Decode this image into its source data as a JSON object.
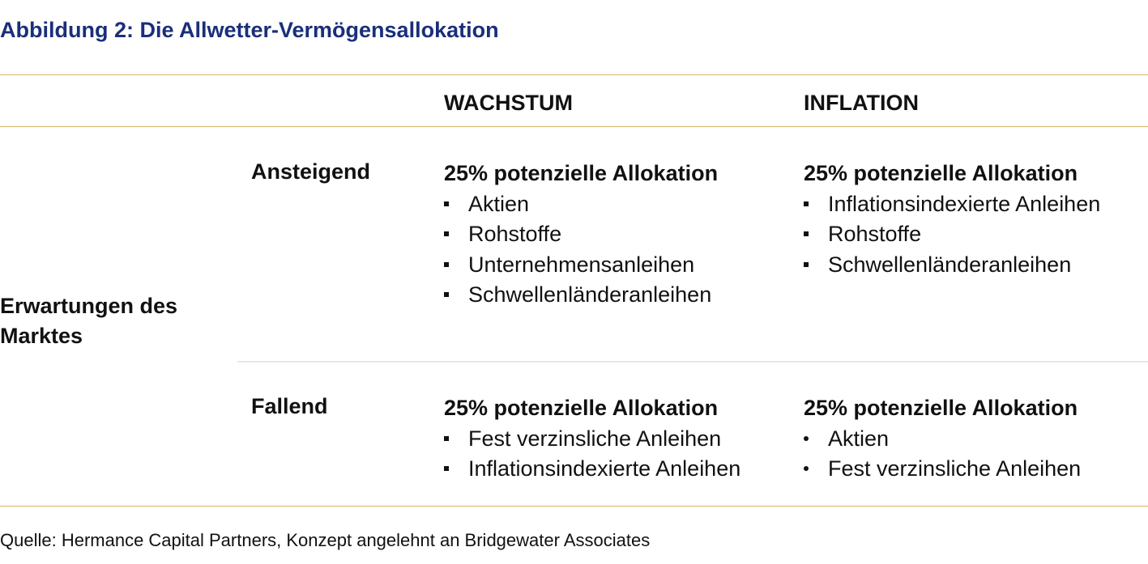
{
  "title": "Abbildung 2: Die Allwetter-Vermögensallokation",
  "columns": {
    "growth": "WACHSTUM",
    "inflation": "INFLATION"
  },
  "side_label": "Erwartungen des Marktes",
  "rows": {
    "rising": {
      "label": "Ansteigend",
      "growth": {
        "heading": "25% potenzielle Allokation",
        "items": [
          "Aktien",
          "Rohstoffe",
          "Unternehmensanleihen",
          "Schwellenländeranleihen"
        ]
      },
      "inflation": {
        "heading": "25% potenzielle Allokation",
        "items": [
          "Inflationsindexierte Anleihen",
          "Rohstoffe",
          "Schwellenländeranleihen"
        ]
      }
    },
    "falling": {
      "label": "Fallend",
      "growth": {
        "heading": "25% potenzielle Allokation",
        "items": [
          "Fest verzinsliche Anleihen",
          "Inflationsindexierte Anleihen"
        ]
      },
      "inflation": {
        "heading": "25% potenzielle Allokation",
        "items": [
          "Aktien",
          "Fest verzinsliche Anleihen"
        ]
      }
    }
  },
  "source": "Quelle: Hermance Capital Partners, Konzept angelehnt an Bridgewater Associates",
  "colors": {
    "title": "#1a2f7a",
    "rule": "#d9b36a",
    "divider": "#e6e6e6",
    "text": "#111111"
  }
}
